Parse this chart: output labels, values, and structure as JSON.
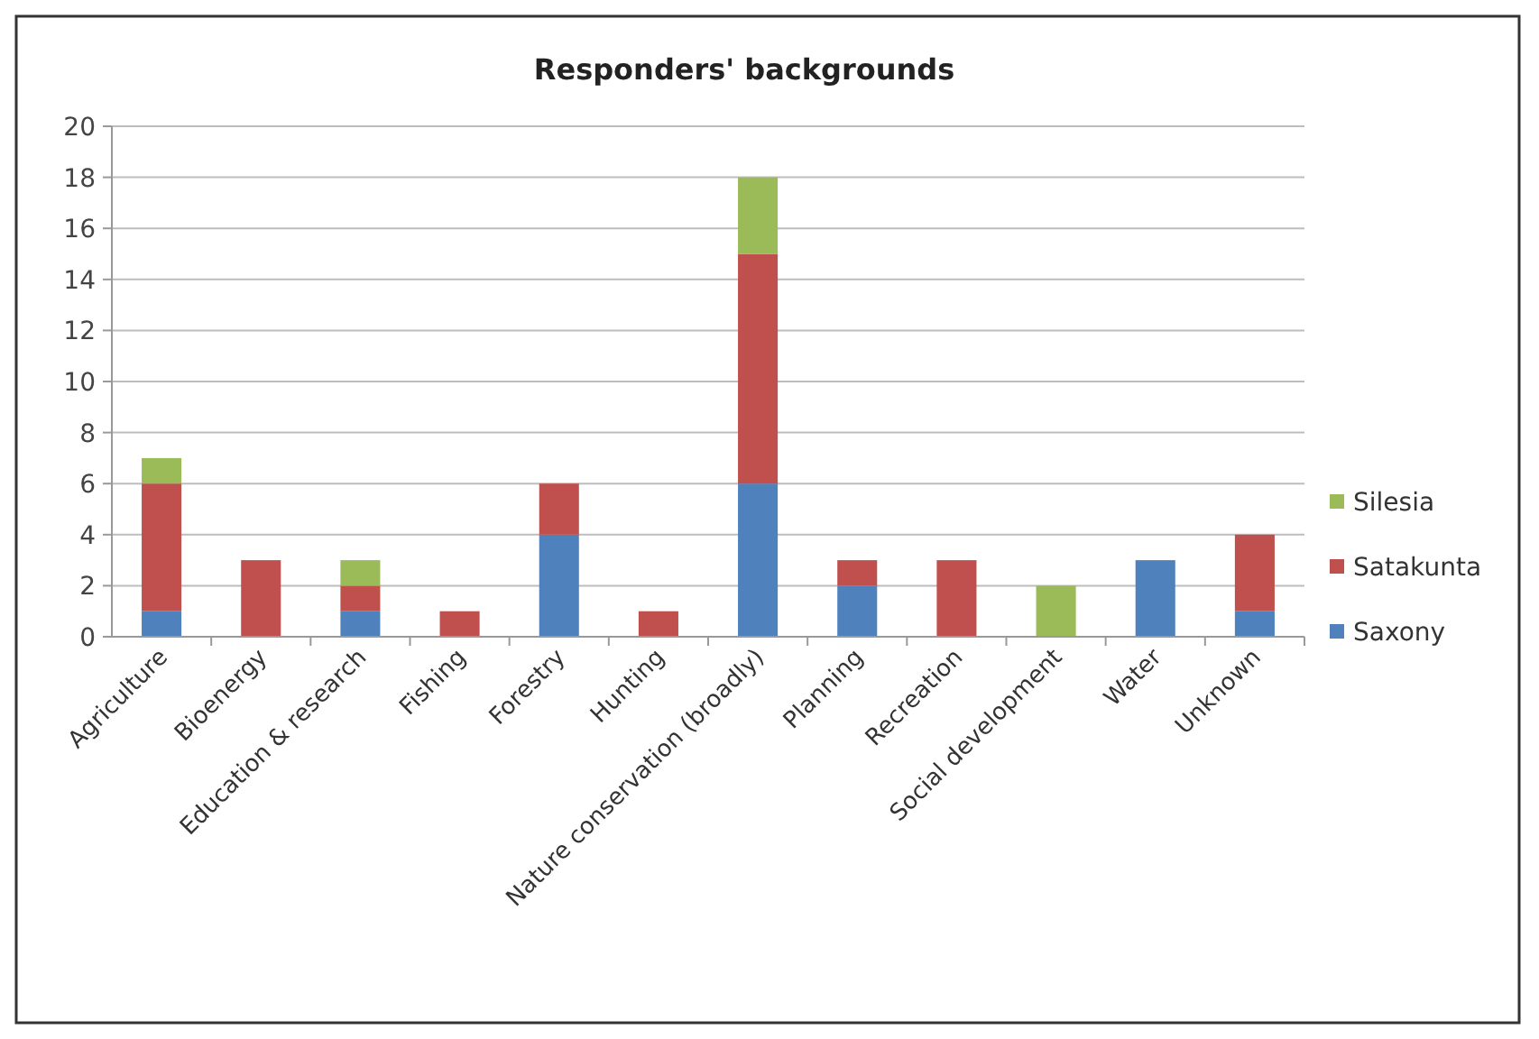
{
  "chart_data": {
    "type": "bar",
    "title": "Responders' backgrounds",
    "stacked": true,
    "categories": [
      "Agriculture",
      "Bioenergy",
      "Education & research",
      "Fishing",
      "Forestry",
      "Hunting",
      "Nature conservation (broadly)",
      "Planning",
      "Recreation",
      "Social development",
      "Water",
      "Unknown"
    ],
    "series": [
      {
        "name": "Saxony",
        "color": "#4f81bd",
        "values": [
          1,
          0,
          1,
          0,
          4,
          0,
          6,
          2,
          0,
          0,
          3,
          1
        ]
      },
      {
        "name": "Satakunta",
        "color": "#c0504d",
        "values": [
          5,
          3,
          1,
          1,
          2,
          1,
          9,
          1,
          3,
          0,
          0,
          3
        ]
      },
      {
        "name": "Silesia",
        "color": "#9bbb59",
        "values": [
          1,
          0,
          1,
          0,
          0,
          0,
          3,
          0,
          0,
          2,
          0,
          0
        ]
      }
    ],
    "ylim": [
      0,
      20
    ],
    "yticks": [
      0,
      2,
      4,
      6,
      8,
      10,
      12,
      14,
      16,
      18,
      20
    ],
    "grid": "y",
    "legend": "right"
  }
}
